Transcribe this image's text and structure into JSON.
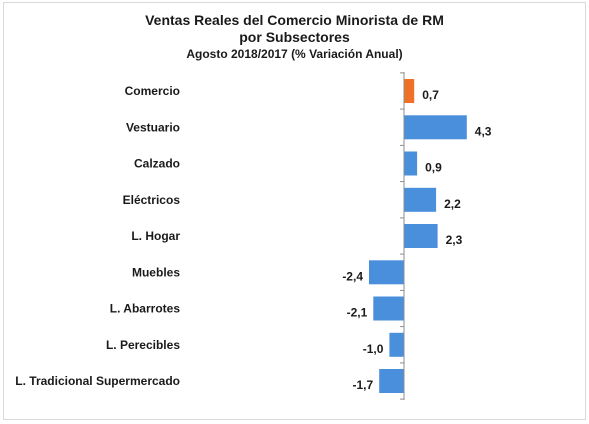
{
  "chart_data": {
    "type": "bar",
    "orientation": "horizontal",
    "title": "Ventas Reales del Comercio Minorista de RM",
    "title_line2": "por Subsectores",
    "subtitle": "Agosto 2018/2017 (% Variación Anual)",
    "categories": [
      "Comercio",
      "Vestuario",
      "Calzado",
      "Eléctricos",
      "L. Hogar",
      "Muebles",
      "L. Abarrotes",
      "L. Perecibles",
      "L. Tradicional Supermercado"
    ],
    "values": [
      0.7,
      4.3,
      0.9,
      2.2,
      2.3,
      -2.4,
      -2.1,
      -1.0,
      -1.7
    ],
    "data_labels": [
      "0,7",
      "4,3",
      "0,9",
      "2,2",
      "2,3",
      "-2,4",
      "-2,1",
      "-1,0",
      "-1,7"
    ],
    "colors": {
      "highlight": "#f07027",
      "default": "#4a8fdc"
    },
    "highlight_index": 0,
    "xlim": [
      -3,
      5
    ],
    "grid": false,
    "legend": "none"
  }
}
